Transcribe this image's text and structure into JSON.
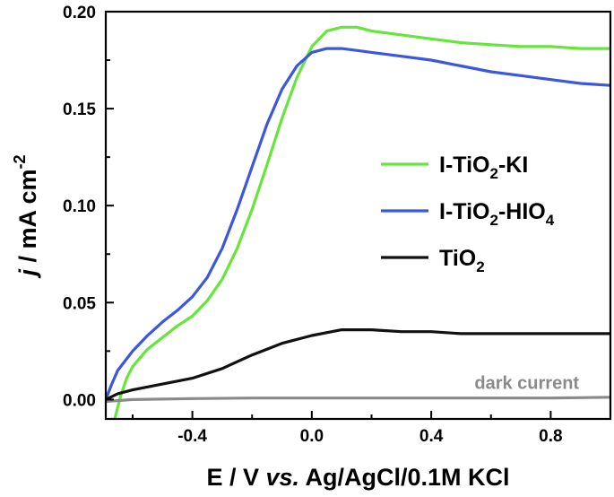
{
  "chart_data": {
    "type": "line",
    "title": "",
    "xlabel": {
      "prefix": "E / V ",
      "italic": "vs.",
      "suffix": " Ag/AgCl/0.1M KCl"
    },
    "ylabel": {
      "italic": "j",
      "main": " / mA cm",
      "superscript": "-2"
    },
    "xlim": [
      -0.69,
      1.0
    ],
    "ylim": [
      -0.01,
      0.2
    ],
    "xticks": [
      -0.4,
      0.0,
      0.4,
      0.8
    ],
    "xtick_labels": [
      "-0.4",
      "0.0",
      "0.4",
      "0.8"
    ],
    "yticks": [
      0.0,
      0.05,
      0.1,
      0.15,
      0.2
    ],
    "ytick_labels": [
      "0.00",
      "0.05",
      "0.10",
      "0.15",
      "0.20"
    ],
    "grid": false,
    "legend_position": "center-right",
    "series": [
      {
        "name": "I-TiO2-KI",
        "legend": {
          "base": "I-TiO",
          "sub": "2",
          "rest": "-KI"
        },
        "color": "#66e63a",
        "x": [
          -0.66,
          -0.64,
          -0.62,
          -0.6,
          -0.55,
          -0.5,
          -0.45,
          -0.4,
          -0.35,
          -0.3,
          -0.25,
          -0.2,
          -0.15,
          -0.1,
          -0.05,
          0.0,
          0.05,
          0.1,
          0.15,
          0.2,
          0.3,
          0.4,
          0.5,
          0.6,
          0.7,
          0.8,
          0.9,
          1.0
        ],
        "y": [
          -0.01,
          0.002,
          0.011,
          0.017,
          0.026,
          0.032,
          0.038,
          0.043,
          0.051,
          0.062,
          0.078,
          0.098,
          0.121,
          0.145,
          0.166,
          0.182,
          0.19,
          0.192,
          0.192,
          0.19,
          0.188,
          0.186,
          0.184,
          0.183,
          0.182,
          0.182,
          0.181,
          0.181
        ]
      },
      {
        "name": "I-TiO2-HIO4",
        "legend": {
          "base": "I-TiO",
          "sub": "2",
          "rest": "-HIO",
          "sub2": "4"
        },
        "color": "#3a57de",
        "x": [
          -0.69,
          -0.67,
          -0.65,
          -0.6,
          -0.55,
          -0.5,
          -0.45,
          -0.4,
          -0.35,
          -0.3,
          -0.25,
          -0.2,
          -0.15,
          -0.1,
          -0.05,
          0.0,
          0.05,
          0.1,
          0.15,
          0.2,
          0.3,
          0.4,
          0.5,
          0.6,
          0.7,
          0.8,
          0.9,
          1.0
        ],
        "y": [
          0.0,
          0.008,
          0.015,
          0.025,
          0.033,
          0.04,
          0.046,
          0.053,
          0.063,
          0.078,
          0.098,
          0.12,
          0.142,
          0.16,
          0.172,
          0.179,
          0.181,
          0.181,
          0.18,
          0.179,
          0.177,
          0.175,
          0.172,
          0.169,
          0.167,
          0.165,
          0.163,
          0.162
        ]
      },
      {
        "name": "TiO2",
        "legend": {
          "base": "TiO",
          "sub": "2",
          "rest": ""
        },
        "color": "#111111",
        "x": [
          -0.69,
          -0.65,
          -0.6,
          -0.5,
          -0.4,
          -0.3,
          -0.2,
          -0.1,
          0.0,
          0.1,
          0.2,
          0.3,
          0.4,
          0.5,
          0.6,
          0.7,
          0.8,
          0.9,
          1.0
        ],
        "y": [
          0.0,
          0.003,
          0.005,
          0.008,
          0.011,
          0.016,
          0.023,
          0.029,
          0.033,
          0.036,
          0.036,
          0.035,
          0.035,
          0.034,
          0.034,
          0.034,
          0.034,
          0.034,
          0.034
        ]
      },
      {
        "name": "dark current",
        "color": "#8a8a8a",
        "x": [
          -0.69,
          -0.6,
          -0.4,
          -0.2,
          0.0,
          0.2,
          0.4,
          0.6,
          0.8,
          1.0
        ],
        "y": [
          -0.001,
          0.0,
          0.0005,
          0.0008,
          0.0008,
          0.0008,
          0.0008,
          0.0008,
          0.0008,
          0.0012
        ]
      }
    ],
    "annotations": [
      {
        "text": "dark current",
        "x": 0.72,
        "y": 0.0055,
        "color": "#8a8a8a"
      }
    ]
  }
}
